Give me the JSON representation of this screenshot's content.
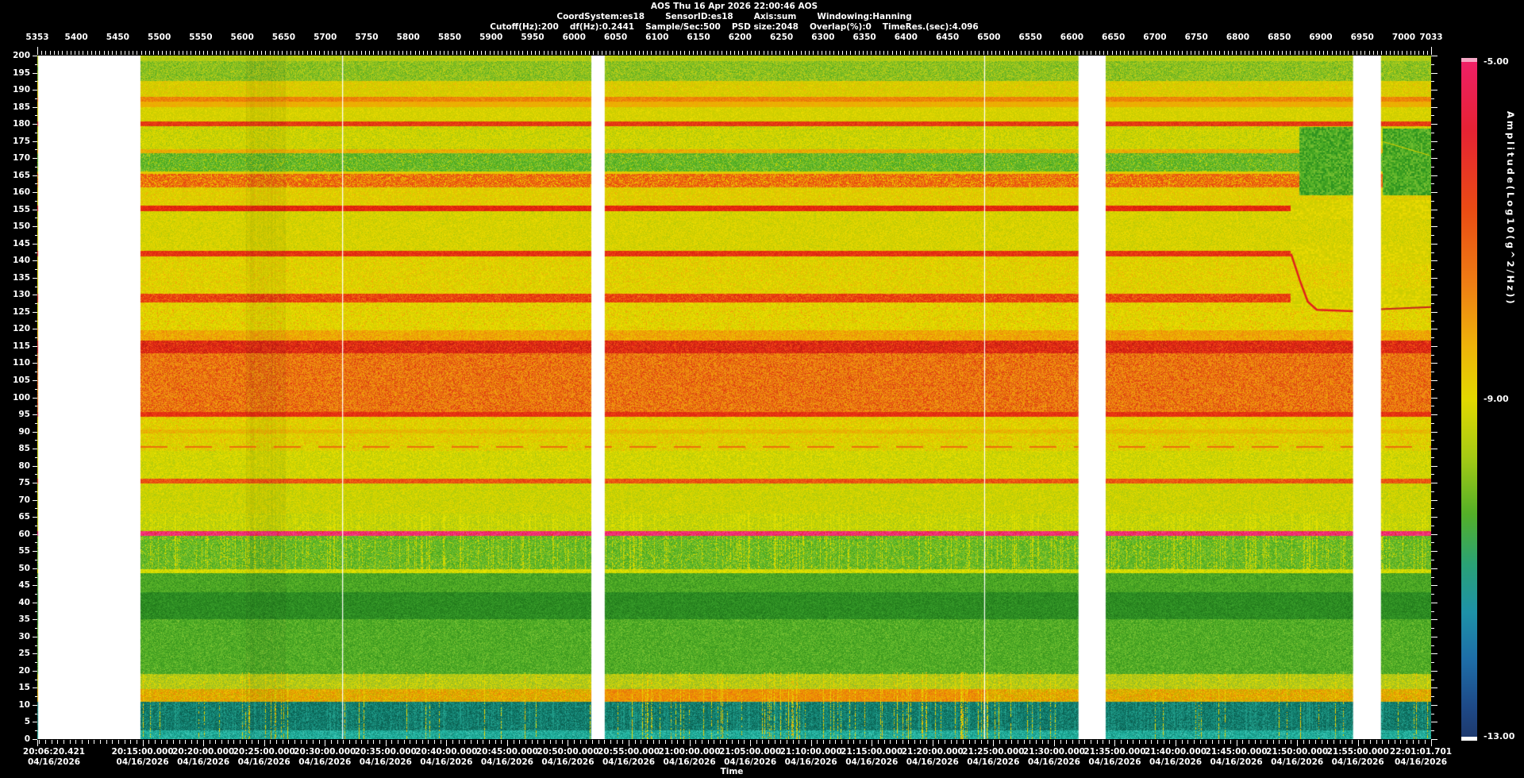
{
  "header": {
    "line1": "AOS  Thu 16 Apr 2026 22:00:46  AOS",
    "line2_items": [
      "CoordSystem:es18",
      "SensorID:es18",
      "Axis:sum",
      "Windowing:Hanning"
    ],
    "line3_items": [
      "Cutoff(Hz):200",
      "df(Hz):0.2441",
      "Sample/Sec:500",
      "PSD size:2048",
      "Overlap(%):0",
      "TimeRes.(sec):4.096"
    ]
  },
  "chart_data": {
    "type": "heatmap",
    "title": "AOS  Thu 16 Apr 2026 22:00:46  AOS",
    "description": "Acceleration spectrogram, frequency 0-200 Hz vs time 20:06:20.421 to 22:01:01.701 on 04/16/2026, color = amplitude Log10(g^2/Hz) from -5 (pink) to -13 (dark blue). Strong narrowband lines at ~13, 60 (pink), 75, 95, 115, 128-130, 142, 155, 162-165, 180 and 187 Hz; broadband orange band 96-117 Hz; green quiet bands 19-59 and 166-171 Hz; white vertical stripes are data gaps.",
    "xlabel": "Time",
    "ylabel_right": "Amplitude(Log10(g^2/Hz))",
    "top_axis": {
      "v0": 5353,
      "v1": 7033,
      "minor_step": 5,
      "major_step": 50,
      "labels": [
        "5353",
        "5400",
        "5450",
        "5500",
        "5550",
        "5600",
        "5650",
        "5700",
        "5750",
        "5800",
        "5850",
        "5900",
        "5950",
        "6000",
        "6050",
        "6100",
        "6150",
        "6200",
        "6250",
        "6300",
        "6350",
        "6400",
        "6450",
        "6500",
        "6550",
        "6600",
        "6650",
        "6700",
        "6750",
        "6800",
        "6850",
        "6900",
        "6950",
        "7000",
        "7033"
      ]
    },
    "freq_axis": {
      "f0": 0,
      "f1": 200,
      "label_step": 5,
      "minor_step": 2.5
    },
    "time_axis": {
      "total": 6881.28,
      "date": "04/16/2026",
      "xlabel": "Time",
      "minor_step": 30,
      "minor_offset": 9.579,
      "labels": [
        {
          "text": "20:06:20.421",
          "sec": 0
        },
        {
          "text": "20:15:00.000",
          "sec": 519.579
        },
        {
          "text": "20:20:00.000",
          "sec": 819.579
        },
        {
          "text": "20:25:00.000",
          "sec": 1119.579
        },
        {
          "text": "20:30:00.000",
          "sec": 1419.579
        },
        {
          "text": "20:35:00.000",
          "sec": 1719.579
        },
        {
          "text": "20:40:00.000",
          "sec": 2019.579
        },
        {
          "text": "20:45:00.000",
          "sec": 2319.579
        },
        {
          "text": "20:50:00.000",
          "sec": 2619.579
        },
        {
          "text": "20:55:00.000",
          "sec": 2919.579
        },
        {
          "text": "21:00:00.000",
          "sec": 3219.579
        },
        {
          "text": "21:05:00.000",
          "sec": 3519.579
        },
        {
          "text": "21:10:00.000",
          "sec": 3819.579
        },
        {
          "text": "21:15:00.000",
          "sec": 4119.579
        },
        {
          "text": "21:20:00.000",
          "sec": 4419.579
        },
        {
          "text": "21:25:00.000",
          "sec": 4719.579
        },
        {
          "text": "21:30:00.000",
          "sec": 5019.579
        },
        {
          "text": "21:35:00.000",
          "sec": 5319.579
        },
        {
          "text": "21:40:00.000",
          "sec": 5619.579
        },
        {
          "text": "21:45:00.000",
          "sec": 5919.579
        },
        {
          "text": "21:50:00.000",
          "sec": 6219.579
        },
        {
          "text": "21:55:00.000",
          "sec": 6519.579
        },
        {
          "text": "22:01:01.701",
          "sec": 6881.28
        }
      ]
    },
    "colorbar": {
      "labels": [
        "-5.00",
        "-9.00",
        "-13.00"
      ],
      "range": [
        -5,
        -13
      ],
      "top_cap": "#f4a6c4",
      "bottom_cap": "#ffffff",
      "stops": [
        [
          0.0,
          "#ee2066"
        ],
        [
          0.1,
          "#e62234"
        ],
        [
          0.22,
          "#ea4c14"
        ],
        [
          0.33,
          "#ee7e14"
        ],
        [
          0.42,
          "#eeb20a"
        ],
        [
          0.5,
          "#e2d800"
        ],
        [
          0.585,
          "#a6ca14"
        ],
        [
          0.67,
          "#54b028"
        ],
        [
          0.745,
          "#2aa276"
        ],
        [
          0.815,
          "#1e92a8"
        ],
        [
          0.885,
          "#1e6ea8"
        ],
        [
          0.955,
          "#1e4a88"
        ],
        [
          1.0,
          "#1e3a6e"
        ]
      ]
    },
    "bands": [
      {
        "f0": 0,
        "f1": 2.6,
        "colors": [
          "#22b2a0",
          "#18a28e",
          "#30c0ae",
          "#128878",
          "#48c8b4"
        ],
        "weights": [
          3,
          3,
          2,
          2,
          1
        ]
      },
      {
        "f0": 2.6,
        "f1": 11,
        "colors": [
          "#128070",
          "#0d6e5e",
          "#1a9282",
          "#0b5e50",
          "#23a08c"
        ],
        "weights": [
          3,
          3,
          2,
          2,
          1
        ],
        "vstreak": 1
      },
      {
        "f0": 11,
        "f1": 14.6,
        "colors": [
          "#e2a400",
          "#eec000",
          "#ea8406",
          "#cfae00",
          "#b8b400"
        ],
        "weights": [
          3,
          3,
          2,
          2,
          1
        ],
        "hot": {
          "ranges": [
            [
              0.4,
              0.68
            ]
          ],
          "colors": [
            "#ee8406",
            "#f09c02",
            "#e8b000",
            "#e47010"
          ],
          "weights": [
            3,
            3,
            2,
            2
          ]
        }
      },
      {
        "f0": 14.6,
        "f1": 19,
        "colors": [
          "#c2ce12",
          "#aac61c",
          "#e0da00",
          "#94ba22"
        ],
        "weights": [
          3,
          3,
          2,
          2
        ]
      },
      {
        "f0": 19,
        "f1": 35,
        "colors": [
          "#54b028",
          "#46a222",
          "#66bc2e",
          "#38961e",
          "#7ec434"
        ],
        "weights": [
          3,
          3,
          2,
          2,
          1
        ]
      },
      {
        "f0": 35,
        "f1": 43,
        "colors": [
          "#2e9024",
          "#27821e",
          "#3a9e2a",
          "#1e761a"
        ],
        "weights": [
          3,
          3,
          2,
          1
        ]
      },
      {
        "f0": 43,
        "f1": 48.6,
        "colors": [
          "#50ac26",
          "#42a022",
          "#62b82c",
          "#368e1e"
        ],
        "weights": [
          3,
          3,
          2,
          2
        ]
      },
      {
        "f0": 48.6,
        "f1": 49.7,
        "colors": [
          "#dade00",
          "#c8d400",
          "#e8e400",
          "#a6c80e"
        ],
        "weights": [
          3,
          2,
          2,
          1
        ]
      },
      {
        "f0": 49.7,
        "f1": 59.5,
        "colors": [
          "#58b226",
          "#6cbc2a",
          "#46a420",
          "#84c42e",
          "#d2d800"
        ],
        "weights": [
          3,
          3,
          2,
          2,
          1
        ],
        "vstreak": 1
      },
      {
        "f0": 59.5,
        "f1": 60.8,
        "colors": [
          "#f13078",
          "#ec2468",
          "#fa4886",
          "#e02828"
        ],
        "weights": [
          4,
          3,
          2,
          1
        ]
      },
      {
        "f0": 60.8,
        "f1": 66,
        "colors": [
          "#bcd00a",
          "#cad600",
          "#a4c614",
          "#e2e000"
        ],
        "weights": [
          3,
          3,
          2,
          2
        ],
        "vstreak": 1
      },
      {
        "f0": 66,
        "f1": 74.9,
        "colors": [
          "#d4d400",
          "#c4d002",
          "#e2da00",
          "#aeca0e"
        ],
        "weights": [
          3,
          3,
          2,
          2
        ]
      },
      {
        "f0": 74.9,
        "f1": 76.1,
        "colors": [
          "#ea5410",
          "#e43c10",
          "#f07014"
        ],
        "weights": [
          3,
          2,
          2
        ]
      },
      {
        "f0": 76.1,
        "f1": 84.4,
        "colors": [
          "#dad600",
          "#cad202",
          "#e8e000",
          "#b4cc0c"
        ],
        "weights": [
          3,
          3,
          2,
          2
        ]
      },
      {
        "f0": 84.4,
        "f1": 86.6,
        "colors": [
          "#dcd200",
          "#ccd000",
          "#e8dc00",
          "#eca408"
        ],
        "weights": [
          3,
          3,
          2,
          1
        ]
      },
      {
        "f0": 86.6,
        "f1": 89.5,
        "colors": [
          "#e0d000",
          "#d2cc00",
          "#eadc00",
          "#f0a406"
        ],
        "weights": [
          3,
          3,
          2,
          1
        ]
      },
      {
        "f0": 89.5,
        "f1": 90.7,
        "colors": [
          "#eab004",
          "#e0c200",
          "#ee9c06",
          "#dcc800"
        ],
        "weights": [
          3,
          3,
          2,
          2
        ]
      },
      {
        "f0": 90.7,
        "f1": 94.3,
        "colors": [
          "#e0d000",
          "#d2cc00",
          "#ecdc00",
          "#f0a806"
        ],
        "weights": [
          3,
          3,
          2,
          1
        ]
      },
      {
        "f0": 94.3,
        "f1": 95.8,
        "colors": [
          "#e62e12",
          "#da2610",
          "#ee4412"
        ],
        "weights": [
          3,
          2,
          2
        ]
      },
      {
        "f0": 95.8,
        "f1": 113,
        "colors": [
          "#ee7d10",
          "#f08e16",
          "#e6620e",
          "#e43a12",
          "#f0a408",
          "#d85510"
        ],
        "weights": [
          3,
          3,
          2,
          2,
          2,
          2
        ]
      },
      {
        "f0": 113,
        "f1": 116.6,
        "colors": [
          "#e42a16",
          "#d42012",
          "#ee3e16",
          "#be1c10",
          "#f05c12"
        ],
        "weights": [
          3,
          3,
          2,
          2,
          1
        ]
      },
      {
        "f0": 116.6,
        "f1": 119.6,
        "colors": [
          "#f0a206",
          "#ec8c0a",
          "#e8b802",
          "#eec400"
        ],
        "weights": [
          3,
          3,
          2,
          2
        ]
      },
      {
        "f0": 119.6,
        "f1": 127.8,
        "colors": [
          "#e2d400",
          "#d4d000",
          "#eede00",
          "#f0a008"
        ],
        "weights": [
          3,
          3,
          2,
          1
        ]
      },
      {
        "f0": 127.8,
        "f1": 130.2,
        "colors": [
          "#e8380e",
          "#ee5410",
          "#e02810",
          "#f08010"
        ],
        "weights": [
          3,
          3,
          2,
          1
        ]
      },
      {
        "f0": 130.2,
        "f1": 141.2,
        "colors": [
          "#e0d200",
          "#d2ce00",
          "#ecdc00",
          "#eeac06"
        ],
        "weights": [
          3,
          3,
          2,
          1
        ]
      },
      {
        "f0": 141.2,
        "f1": 142.8,
        "colors": [
          "#e62e12",
          "#ee4a12",
          "#da2610"
        ],
        "weights": [
          3,
          2,
          2
        ]
      },
      {
        "f0": 142.8,
        "f1": 154.4,
        "colors": [
          "#dcd200",
          "#ccce00",
          "#e8da00",
          "#b8cc08"
        ],
        "weights": [
          3,
          3,
          2,
          1
        ]
      },
      {
        "f0": 154.4,
        "f1": 156.0,
        "colors": [
          "#e6240e",
          "#f03810",
          "#d61e0c"
        ],
        "weights": [
          3,
          2,
          2
        ]
      },
      {
        "f0": 156.0,
        "f1": 161.4,
        "colors": [
          "#e0cc00",
          "#d4cc00",
          "#eada00",
          "#eeb006"
        ],
        "weights": [
          3,
          3,
          2,
          1
        ]
      },
      {
        "f0": 161.4,
        "f1": 165.4,
        "colors": [
          "#ec5e0e",
          "#ee7c10",
          "#e8460e",
          "#ecc400"
        ],
        "weights": [
          3,
          2,
          2,
          2
        ]
      },
      {
        "f0": 165.4,
        "f1": 166.2,
        "colors": [
          "#e6c800",
          "#e0cc00"
        ],
        "weights": [
          1,
          1
        ]
      },
      {
        "f0": 166.2,
        "f1": 171.4,
        "colors": [
          "#5ab426",
          "#4aa822",
          "#74c02e",
          "#8cc634",
          "#c6d400"
        ],
        "weights": [
          3,
          3,
          2,
          2,
          1
        ]
      },
      {
        "f0": 171.4,
        "f1": 172.6,
        "colors": [
          "#e89c06",
          "#eeb404",
          "#e0c400"
        ],
        "weights": [
          2,
          2,
          1
        ]
      },
      {
        "f0": 172.6,
        "f1": 179.3,
        "colors": [
          "#d6d400",
          "#c6d002",
          "#e4dc00",
          "#a8c80e"
        ],
        "weights": [
          3,
          3,
          2,
          2
        ]
      },
      {
        "f0": 179.3,
        "f1": 180.8,
        "colors": [
          "#e43414",
          "#ec4c12",
          "#d62a10"
        ],
        "weights": [
          3,
          2,
          1
        ]
      },
      {
        "f0": 180.8,
        "f1": 184.8,
        "colors": [
          "#d8d000",
          "#cace00",
          "#e6da00"
        ],
        "weights": [
          3,
          3,
          2
        ]
      },
      {
        "f0": 184.8,
        "f1": 186.5,
        "colors": [
          "#e8b600",
          "#f0a604"
        ],
        "weights": [
          2,
          2
        ]
      },
      {
        "f0": 186.5,
        "f1": 187.9,
        "colors": [
          "#ee8406",
          "#f0970a",
          "#e87008"
        ],
        "weights": [
          3,
          2,
          2
        ]
      },
      {
        "f0": 187.9,
        "f1": 192.6,
        "colors": [
          "#d8cc00",
          "#ccc800",
          "#e4d600",
          "#eeb806"
        ],
        "weights": [
          3,
          3,
          2,
          1
        ]
      },
      {
        "f0": 192.6,
        "f1": 198.4,
        "colors": [
          "#74b824",
          "#8cc024",
          "#a4ca1c",
          "#5cae20",
          "#c2d014"
        ],
        "weights": [
          3,
          3,
          3,
          2,
          2
        ]
      },
      {
        "f0": 198.4,
        "f1": 200.1,
        "colors": [
          "#b6cc12",
          "#a6c61a",
          "#ccd40a"
        ],
        "weights": [
          2,
          2,
          1
        ]
      }
    ],
    "gaps": [
      [
        0.0006,
        0.074
      ],
      [
        0.3975,
        0.4071
      ],
      [
        0.747,
        0.7665
      ],
      [
        0.944,
        0.964
      ]
    ],
    "white_vlines": [
      0.2187,
      0.6793
    ],
    "dark_columns": [
      {
        "x0": 0.15,
        "x1": 0.178,
        "a": 0.05
      }
    ],
    "streaks": {
      "base": 0.035,
      "fmax": 19.5,
      "colors": [
        "#e6da00",
        "#f0ae04"
      ],
      "boost": [
        [
          0.115,
          0.185,
          0.08
        ],
        [
          0.42,
          0.52,
          0.06
        ],
        [
          0.52,
          0.72,
          0.12
        ]
      ]
    },
    "features": {
      "mask_colors": [
        "#dcd200",
        "#ccce00",
        "#e8da00",
        "#d6d000"
      ],
      "masks": [
        {
          "x0": 0.8995,
          "x1": 0.944,
          "bands": [
            [
              152.5,
              157.6
            ],
            [
              139.5,
              144.6
            ],
            [
              126.8,
              131.8
            ]
          ]
        },
        {
          "x0": 0.964,
          "x1": 1.0,
          "bands": [
            [
              152.5,
              157.6
            ],
            [
              139.5,
              144.6
            ],
            [
              126.8,
              131.8
            ]
          ]
        }
      ],
      "patches": [
        {
          "x0": 0.9055,
          "x1": 0.944,
          "f0": 159.5,
          "f1": 179.0,
          "colors": [
            "#4aaa24",
            "#3c9e20",
            "#5cb42a",
            "#72bc30",
            "#2e9420"
          ]
        },
        {
          "x0": 0.9655,
          "x1": 1.0,
          "f0": 159.5,
          "f1": 178.5,
          "colors": [
            "#4aaa24",
            "#3c9e20",
            "#5cb42a",
            "#72bc30",
            "#2e9420"
          ]
        }
      ],
      "dashes": [
        {
          "f": 85.5,
          "h": 2,
          "color": "#ec6c0c",
          "on": 34,
          "off": 22,
          "x0": 0.074,
          "x1": 1.0
        }
      ],
      "polylines": [
        {
          "color": "#e0201c",
          "width": 2.5,
          "points": [
            [
              0.8995,
              142.0
            ],
            [
              0.906,
              134.0
            ],
            [
              0.9115,
              128.0
            ],
            [
              0.918,
              125.6
            ],
            [
              0.944,
              125.2
            ]
          ]
        },
        {
          "color": "#c8241c",
          "width": 2,
          "points": [
            [
              0.964,
              125.8
            ],
            [
              1.0,
              126.4
            ]
          ]
        },
        {
          "color": "#ddd000",
          "width": 1.2,
          "points": [
            [
              0.9655,
              174.8
            ],
            [
              0.999,
              170.8
            ]
          ]
        }
      ]
    }
  },
  "footer": {
    "time_label": "Time"
  }
}
